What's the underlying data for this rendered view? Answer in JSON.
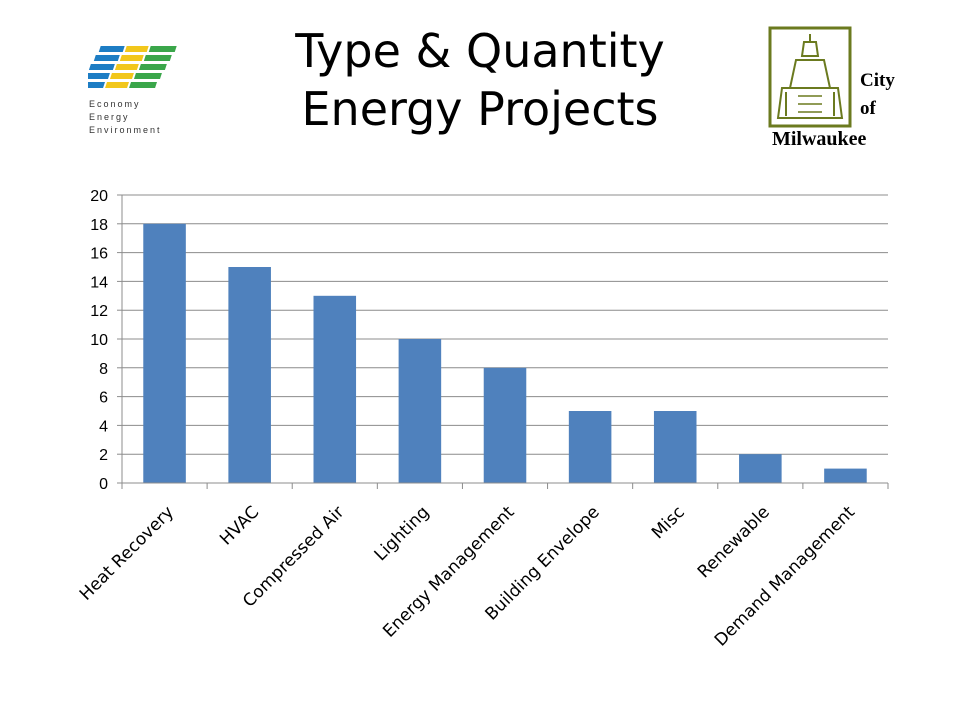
{
  "header": {
    "title_line1": "Type & Quantity",
    "title_line2": "Energy Projects"
  },
  "logo_left": {
    "icon": "economy-energy-environment-logo",
    "lines": [
      "Economy",
      "Energy",
      "Environment"
    ],
    "colors": [
      "#1d7dc4",
      "#3aa64a",
      "#f2c71b"
    ]
  },
  "logo_right": {
    "icon": "city-hall-seal",
    "line1": "City",
    "line2": "of",
    "line3": "Milwaukee",
    "color": "#6b7a1f"
  },
  "chart_data": {
    "type": "bar",
    "categories": [
      "Heat Recovery",
      "HVAC",
      "Compressed Air",
      "Lighting",
      "Energy Management",
      "Building Envelope",
      "Misc",
      "Renewable",
      "Demand Management"
    ],
    "values": [
      18,
      15,
      13,
      10,
      8,
      5,
      5,
      2,
      1
    ],
    "ylim": [
      0,
      20
    ],
    "yticks": [
      0,
      2,
      4,
      6,
      8,
      10,
      12,
      14,
      16,
      18,
      20
    ],
    "grid": true,
    "bar_color": "#4f81bd"
  }
}
